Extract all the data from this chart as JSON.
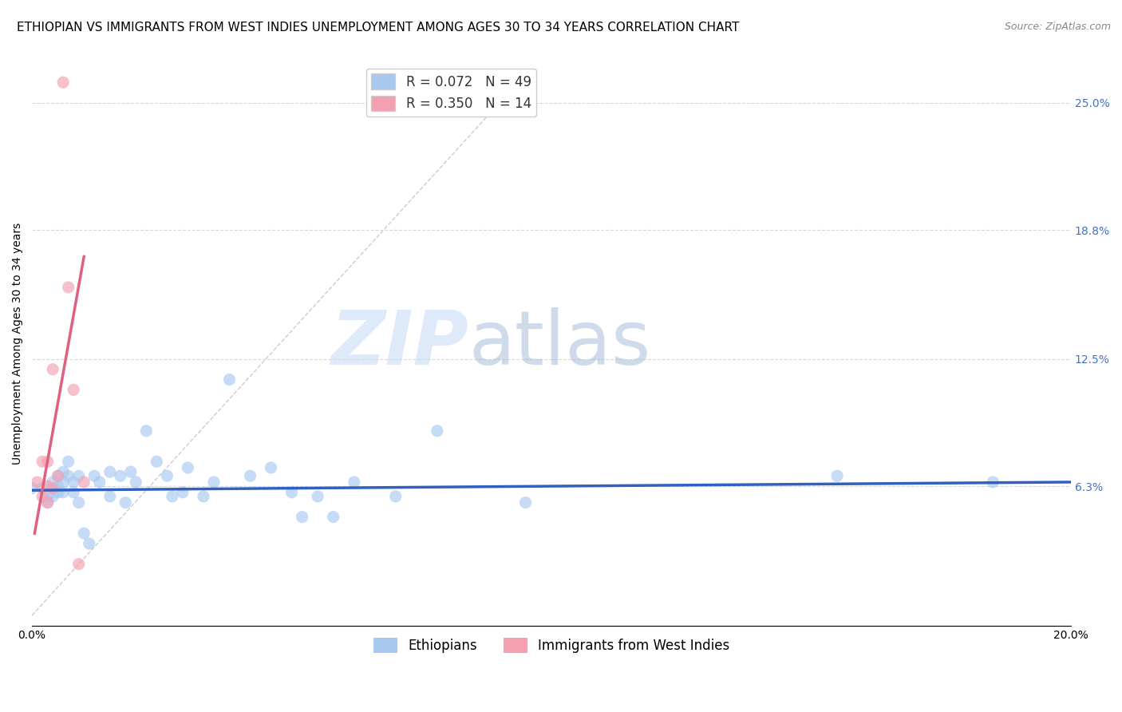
{
  "title": "ETHIOPIAN VS IMMIGRANTS FROM WEST INDIES UNEMPLOYMENT AMONG AGES 30 TO 34 YEARS CORRELATION CHART",
  "source": "Source: ZipAtlas.com",
  "ylabel": "Unemployment Among Ages 30 to 34 years",
  "xlim": [
    0.0,
    0.2
  ],
  "ylim": [
    -0.005,
    0.27
  ],
  "xticks": [
    0.0,
    0.05,
    0.1,
    0.15,
    0.2
  ],
  "xticklabels": [
    "0.0%",
    "",
    "",
    "",
    "20.0%"
  ],
  "yticks_right": [
    0.063,
    0.125,
    0.188,
    0.25
  ],
  "yticklabels_right": [
    "6.3%",
    "12.5%",
    "18.8%",
    "25.0%"
  ],
  "blue_scatter": [
    [
      0.0,
      0.062
    ],
    [
      0.002,
      0.062
    ],
    [
      0.003,
      0.055
    ],
    [
      0.003,
      0.058
    ],
    [
      0.004,
      0.065
    ],
    [
      0.004,
      0.058
    ],
    [
      0.005,
      0.068
    ],
    [
      0.005,
      0.06
    ],
    [
      0.005,
      0.063
    ],
    [
      0.006,
      0.07
    ],
    [
      0.006,
      0.06
    ],
    [
      0.006,
      0.065
    ],
    [
      0.007,
      0.075
    ],
    [
      0.007,
      0.068
    ],
    [
      0.008,
      0.06
    ],
    [
      0.008,
      0.065
    ],
    [
      0.009,
      0.068
    ],
    [
      0.009,
      0.055
    ],
    [
      0.01,
      0.04
    ],
    [
      0.011,
      0.035
    ],
    [
      0.012,
      0.068
    ],
    [
      0.013,
      0.065
    ],
    [
      0.015,
      0.07
    ],
    [
      0.015,
      0.058
    ],
    [
      0.017,
      0.068
    ],
    [
      0.018,
      0.055
    ],
    [
      0.019,
      0.07
    ],
    [
      0.02,
      0.065
    ],
    [
      0.022,
      0.09
    ],
    [
      0.024,
      0.075
    ],
    [
      0.026,
      0.068
    ],
    [
      0.027,
      0.058
    ],
    [
      0.029,
      0.06
    ],
    [
      0.03,
      0.072
    ],
    [
      0.033,
      0.058
    ],
    [
      0.035,
      0.065
    ],
    [
      0.038,
      0.115
    ],
    [
      0.042,
      0.068
    ],
    [
      0.046,
      0.072
    ],
    [
      0.05,
      0.06
    ],
    [
      0.052,
      0.048
    ],
    [
      0.055,
      0.058
    ],
    [
      0.058,
      0.048
    ],
    [
      0.062,
      0.065
    ],
    [
      0.07,
      0.058
    ],
    [
      0.078,
      0.09
    ],
    [
      0.095,
      0.055
    ],
    [
      0.155,
      0.068
    ],
    [
      0.185,
      0.065
    ]
  ],
  "pink_scatter": [
    [
      0.001,
      0.065
    ],
    [
      0.002,
      0.075
    ],
    [
      0.002,
      0.058
    ],
    [
      0.003,
      0.063
    ],
    [
      0.003,
      0.075
    ],
    [
      0.003,
      0.055
    ],
    [
      0.004,
      0.12
    ],
    [
      0.004,
      0.062
    ],
    [
      0.005,
      0.068
    ],
    [
      0.006,
      0.26
    ],
    [
      0.007,
      0.16
    ],
    [
      0.008,
      0.11
    ],
    [
      0.009,
      0.025
    ],
    [
      0.01,
      0.065
    ]
  ],
  "blue_line_x": [
    0.0,
    0.2
  ],
  "blue_line_y": [
    0.061,
    0.065
  ],
  "pink_line_x": [
    0.0005,
    0.01
  ],
  "pink_line_y": [
    0.04,
    0.175
  ],
  "diag_line_x": [
    0.0,
    0.09
  ],
  "diag_line_y": [
    0.0,
    0.25
  ],
  "background_color": "#ffffff",
  "grid_color": "#d8d8d8",
  "blue_dot_color": "#a8c8f0",
  "pink_dot_color": "#f4a0b0",
  "blue_line_color": "#3060c0",
  "pink_line_color": "#e06080",
  "diag_line_color": "#cccccc",
  "watermark_zip": "ZIP",
  "watermark_atlas": "atlas",
  "dot_size": 120,
  "dot_alpha": 0.65,
  "title_fontsize": 11,
  "axis_label_fontsize": 10,
  "tick_fontsize": 10,
  "legend_fontsize": 12
}
